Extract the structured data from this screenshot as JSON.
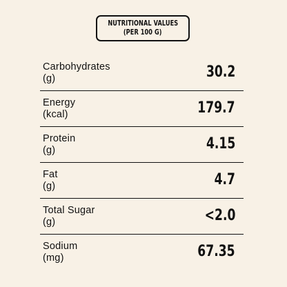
{
  "header": {
    "line1": "NUTRITIONAL VALUES",
    "line2": "(PER 100 G)"
  },
  "rows": [
    {
      "name": "Carbohydrates",
      "unit": "(g)",
      "value": "30.2"
    },
    {
      "name": "Energy",
      "unit": "(kcal)",
      "value": "179.7"
    },
    {
      "name": "Protein",
      "unit": "(g)",
      "value": "4.15"
    },
    {
      "name": "Fat",
      "unit": "(g)",
      "value": "4.7"
    },
    {
      "name": "Total Sugar",
      "unit": "(g)",
      "value": "<2.0"
    },
    {
      "name": "Sodium",
      "unit": "(mg)",
      "value": "67.35"
    }
  ],
  "colors": {
    "background": "#f8f1e6",
    "text": "#111111",
    "rule": "#111111"
  }
}
